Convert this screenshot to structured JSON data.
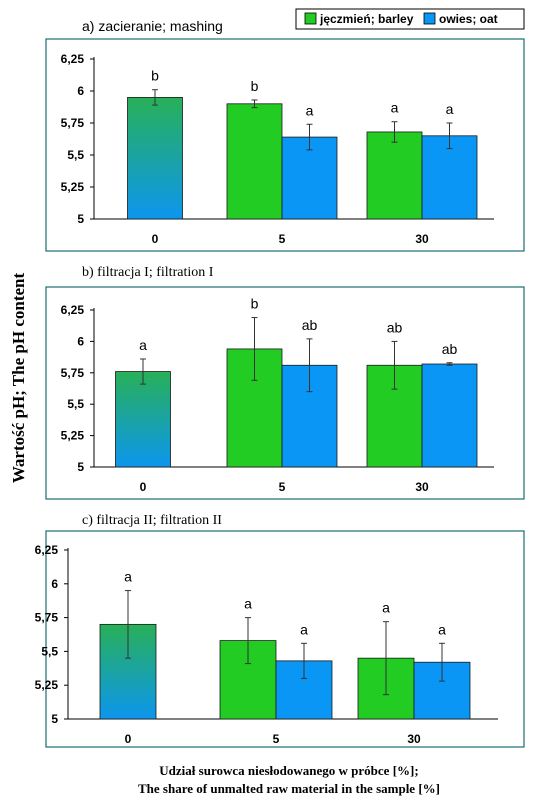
{
  "chart_data": [
    {
      "type": "bar",
      "panel_label": "a)",
      "title": "zacieranie; mashing",
      "categories": [
        "0",
        "5",
        "30"
      ],
      "series": [
        {
          "name": "jęczmień; barley",
          "values": [
            5.95,
            5.9,
            5.68
          ],
          "errors": [
            0.06,
            0.03,
            0.08
          ],
          "letters": [
            "b",
            "b",
            "a"
          ]
        },
        {
          "name": "owies; oat",
          "values": [
            null,
            5.64,
            5.65
          ],
          "errors": [
            null,
            0.1,
            0.1
          ],
          "letters": [
            null,
            "a",
            "a"
          ]
        }
      ],
      "ylim": [
        5,
        6.25
      ],
      "yticks": [
        "5",
        "5,25",
        "5,5",
        "5,75",
        "6",
        "6,25"
      ]
    },
    {
      "type": "bar",
      "panel_label": "b)",
      "title": "filtracja I; filtration I",
      "categories": [
        "0",
        "5",
        "30"
      ],
      "series": [
        {
          "name": "jęczmień; barley",
          "values": [
            5.76,
            5.94,
            5.81
          ],
          "errors": [
            0.1,
            0.25,
            0.19
          ],
          "letters": [
            "a",
            "b",
            "ab"
          ]
        },
        {
          "name": "owies; oat",
          "values": [
            null,
            5.81,
            5.82
          ],
          "errors": [
            null,
            0.21,
            0.01
          ],
          "letters": [
            null,
            "ab",
            "ab"
          ]
        }
      ],
      "ylim": [
        5,
        6.25
      ],
      "yticks": [
        "5",
        "5,25",
        "5,5",
        "5,75",
        "6",
        "6,25"
      ]
    },
    {
      "type": "bar",
      "panel_label": "c)",
      "title": "filtracja II; filtration II",
      "categories": [
        "0",
        "5",
        "30"
      ],
      "series": [
        {
          "name": "jęczmień; barley",
          "values": [
            5.7,
            5.58,
            5.45
          ],
          "errors": [
            0.25,
            0.17,
            0.27
          ],
          "letters": [
            "a",
            "a",
            "a"
          ]
        },
        {
          "name": "owies; oat",
          "values": [
            null,
            5.43,
            5.42
          ],
          "errors": [
            null,
            0.13,
            0.14
          ],
          "letters": [
            null,
            "a",
            "a"
          ]
        }
      ],
      "ylim": [
        5,
        6.25
      ],
      "yticks": [
        "5",
        "5,25",
        "5,5",
        "5,75",
        "6",
        "6,25"
      ]
    }
  ],
  "legend": {
    "items": [
      "jęczmień; barley",
      "owies; oat"
    ],
    "placement": "top-right"
  },
  "ylabel": "Wartość pH; The pH content",
  "xlabel": {
    "line1": "Udział surowca niesłodowanego w próbce [%];",
    "line2": "The share of unmalted raw material in the sample [%]"
  },
  "colors": {
    "barley": "#22cc22",
    "oat": "#0a96f5",
    "gradient_top": "#28b058",
    "gradient_bottom": "#0d96ee",
    "frame": "#1b6d73",
    "axis": "#000000"
  }
}
